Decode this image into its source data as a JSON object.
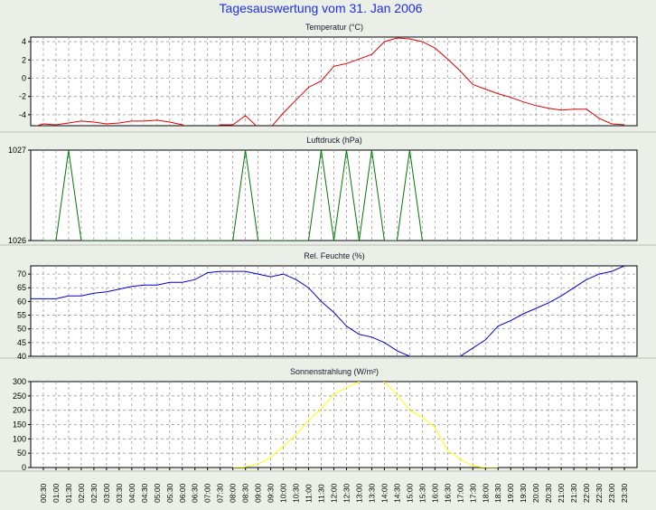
{
  "page_title": "Tagesauswertung vom 31. Jan 2006",
  "x_ticks": [
    "00:30",
    "01:00",
    "01:30",
    "02:00",
    "02:30",
    "03:00",
    "03:30",
    "04:00",
    "04:30",
    "05:00",
    "05:30",
    "06:00",
    "06:30",
    "07:00",
    "07:30",
    "08:00",
    "08:30",
    "09:00",
    "09:30",
    "10:00",
    "10:30",
    "11:00",
    "11:30",
    "12:00",
    "12:30",
    "13:00",
    "13:30",
    "14:00",
    "14:30",
    "15:00",
    "15:30",
    "16:00",
    "16:30",
    "17:00",
    "17:30",
    "18:00",
    "18:30",
    "19:00",
    "19:30",
    "20:00",
    "20:30",
    "21:00",
    "21:30",
    "22:00",
    "22:30",
    "23:00",
    "23:30"
  ],
  "chart_data": [
    {
      "type": "line",
      "title": "Temperatur (°C)",
      "ylim": [
        -5.2,
        4.5
      ],
      "y_ticks": [
        4,
        2,
        0,
        -2,
        -4
      ],
      "color": "#e00000",
      "x": [
        "00:00",
        "00:30",
        "01:00",
        "01:30",
        "02:00",
        "02:30",
        "03:00",
        "03:30",
        "04:00",
        "04:30",
        "05:00",
        "05:30",
        "06:00",
        "06:30",
        "07:00",
        "07:30",
        "08:00",
        "08:30",
        "09:00",
        "09:30",
        "10:00",
        "10:30",
        "11:00",
        "11:30",
        "12:00",
        "12:30",
        "13:00",
        "13:30",
        "14:00",
        "14:30",
        "15:00",
        "15:30",
        "16:00",
        "16:30",
        "17:00",
        "17:30",
        "18:00",
        "18:30",
        "19:00",
        "19:30",
        "20:00",
        "20:30",
        "21:00",
        "21:30",
        "22:00",
        "22:30",
        "23:00",
        "23:30"
      ],
      "values": [
        -5.4,
        -5.0,
        -5.1,
        -4.9,
        -4.7,
        -4.8,
        -5.0,
        -4.9,
        -4.7,
        -4.7,
        -4.6,
        -4.8,
        -5.1,
        -5.7,
        -5.6,
        -5.1,
        -5.1,
        -4.1,
        -5.4,
        -5.4,
        -3.8,
        -2.4,
        -1.0,
        -0.3,
        1.3,
        1.6,
        2.1,
        2.6,
        4.0,
        4.4,
        4.3,
        4.0,
        3.3,
        2.1,
        0.8,
        -0.7,
        -1.2,
        -1.7,
        -2.1,
        -2.6,
        -3.0,
        -3.3,
        -3.5,
        -3.4,
        -3.4,
        -4.4,
        -5.0,
        -5.1
      ]
    },
    {
      "type": "line",
      "title": "Luftdruck (hPa)",
      "ylim": [
        1026,
        1027
      ],
      "y_ticks": [
        1027,
        1026
      ],
      "color": "#007a00",
      "x": [
        "00:30",
        "01:00",
        "01:30",
        "02:00",
        "08:00",
        "08:30",
        "09:00",
        "11:00",
        "11:30",
        "12:00",
        "12:30",
        "13:00",
        "13:30",
        "14:00",
        "14:30",
        "15:00",
        "15:30"
      ],
      "values": [
        1026,
        1026,
        1027,
        1026,
        1026,
        1027,
        1026,
        1026,
        1027,
        1026,
        1027,
        1026,
        1027,
        1026,
        1026,
        1027,
        1026
      ]
    },
    {
      "type": "line",
      "title": "Rel. Feuchte (%)",
      "ylim": [
        40,
        73
      ],
      "y_ticks": [
        70,
        65,
        60,
        55,
        50,
        45,
        40
      ],
      "color": "#0000d0",
      "x": [
        "00:00",
        "00:30",
        "01:00",
        "01:30",
        "02:00",
        "02:30",
        "03:00",
        "03:30",
        "04:00",
        "04:30",
        "05:00",
        "05:30",
        "06:00",
        "06:30",
        "07:00",
        "07:30",
        "08:00",
        "08:30",
        "09:00",
        "09:30",
        "10:00",
        "10:30",
        "11:00",
        "11:30",
        "12:00",
        "12:30",
        "13:00",
        "13:30",
        "14:00",
        "14:30",
        "15:00",
        "15:30",
        "16:00",
        "16:30",
        "17:00",
        "17:30",
        "18:00",
        "18:30",
        "19:00",
        "19:30",
        "20:00",
        "20:30",
        "21:00",
        "21:30",
        "22:00",
        "22:30",
        "23:00",
        "23:30"
      ],
      "values": [
        61,
        61,
        61,
        62,
        62,
        63,
        63.5,
        64.5,
        65.5,
        66,
        66,
        67,
        67,
        68,
        70.5,
        71,
        71,
        71,
        70,
        69,
        70,
        68,
        65,
        60,
        56,
        51,
        48,
        47,
        45,
        42,
        40,
        39,
        38.5,
        39,
        40,
        43,
        46,
        51,
        53,
        55.5,
        57.5,
        59.5,
        62,
        65,
        68,
        70,
        71,
        73
      ]
    },
    {
      "type": "line",
      "title": "Sonnenstrahlung (W/m²)",
      "ylim": [
        0,
        300
      ],
      "y_ticks": [
        300,
        250,
        200,
        150,
        100,
        50,
        0
      ],
      "color": "#ffff00",
      "x": [
        "08:00",
        "08:30",
        "09:00",
        "09:30",
        "10:00",
        "10:30",
        "11:00",
        "11:30",
        "12:00",
        "12:30",
        "13:00",
        "13:30",
        "14:00",
        "14:30",
        "15:00",
        "15:30",
        "16:00",
        "16:30",
        "17:00",
        "17:30",
        "18:00",
        "18:30"
      ],
      "values": [
        0,
        2,
        12,
        35,
        75,
        115,
        165,
        205,
        255,
        280,
        300,
        310,
        300,
        255,
        200,
        175,
        140,
        60,
        30,
        5,
        0,
        0
      ]
    }
  ]
}
